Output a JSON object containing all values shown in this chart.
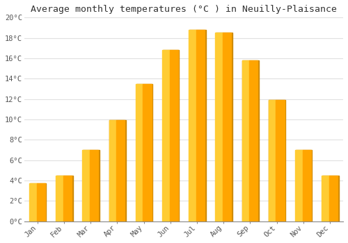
{
  "title": "Average monthly temperatures (°C ) in Neuilly-Plaisance",
  "months": [
    "Jan",
    "Feb",
    "Mar",
    "Apr",
    "May",
    "Jun",
    "Jul",
    "Aug",
    "Sep",
    "Oct",
    "Nov",
    "Dec"
  ],
  "values": [
    3.7,
    4.5,
    7.0,
    9.9,
    13.5,
    16.8,
    18.8,
    18.5,
    15.8,
    11.9,
    7.0,
    4.5
  ],
  "bar_color_light": "#FFCC33",
  "bar_color_dark": "#FFA500",
  "bar_edge_color": "#CC8800",
  "background_color": "#FFFFFF",
  "plot_bg_color": "#FFFFFF",
  "grid_color": "#E0E0E0",
  "ylim": [
    0,
    20
  ],
  "yticks": [
    0,
    2,
    4,
    6,
    8,
    10,
    12,
    14,
    16,
    18,
    20
  ],
  "ytick_labels": [
    "0°C",
    "2°C",
    "4°C",
    "6°C",
    "8°C",
    "10°C",
    "12°C",
    "14°C",
    "16°C",
    "18°C",
    "20°C"
  ],
  "title_fontsize": 9.5,
  "tick_fontsize": 7.5,
  "font_family": "monospace",
  "bar_width": 0.62
}
